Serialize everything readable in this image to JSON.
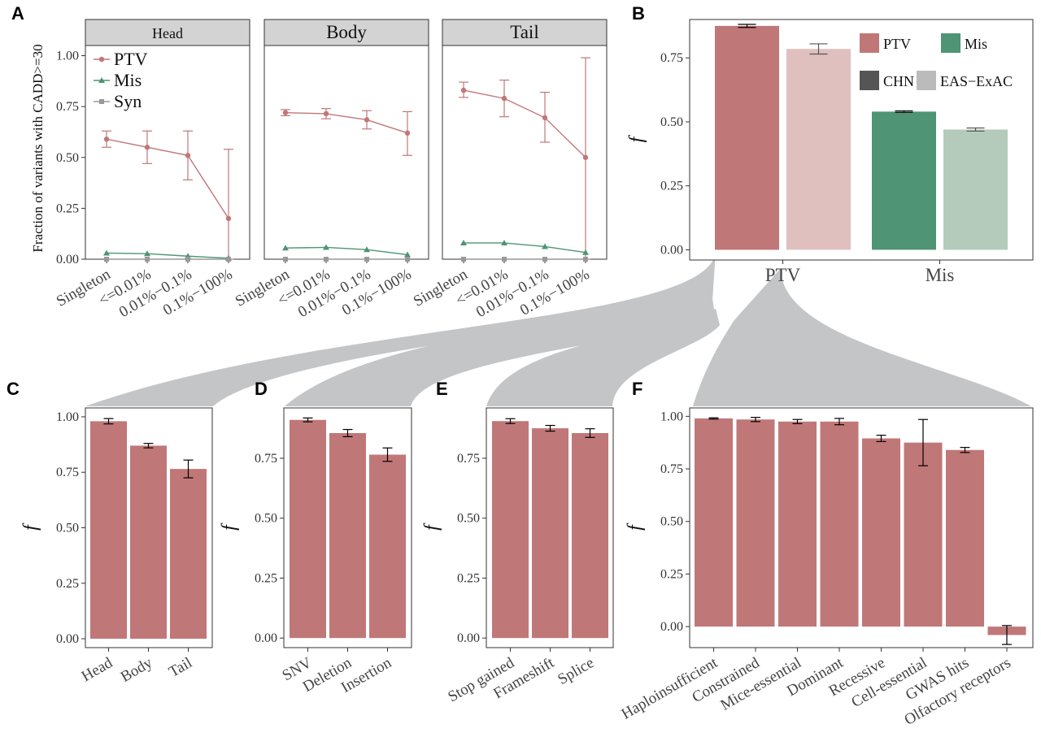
{
  "panels": {
    "A": "A",
    "B": "B",
    "C": "C",
    "D": "D",
    "E": "E",
    "F": "F"
  },
  "colors": {
    "ptv": "#c07778",
    "ptv_light": "#e0c0bf",
    "mis": "#4f9474",
    "mis_light": "#b4cbbc",
    "syn": "#999999",
    "chn": "#555555",
    "eas": "#bbbbbb",
    "strip": "#d3d3d3",
    "connector": "#c4c5c7"
  },
  "chart_data": [
    {
      "id": "A",
      "type": "line",
      "ylabel": "Fraction of variants with CADD>=30",
      "ylim": [
        0,
        1.05
      ],
      "yticks": [
        "0.00",
        "0.25",
        "0.50",
        "0.75",
        "1.00"
      ],
      "categories": [
        "Singleton",
        "<=0.01%",
        "0.01%−0.1%",
        "0.1%−100%"
      ],
      "legend": [
        "PTV",
        "Mis",
        "Syn"
      ],
      "facets": [
        {
          "title": "Head",
          "series": [
            {
              "name": "PTV",
              "values": [
                0.59,
                0.55,
                0.51,
                0.2
              ],
              "lower": [
                0.55,
                0.47,
                0.39,
                0.0
              ],
              "upper": [
                0.63,
                0.63,
                0.63,
                0.54
              ]
            },
            {
              "name": "Mis",
              "values": [
                0.03,
                0.027,
                0.015,
                0.005
              ]
            },
            {
              "name": "Syn",
              "values": [
                0.0,
                0.0,
                0.0,
                0.0
              ]
            }
          ]
        },
        {
          "title": "Body",
          "series": [
            {
              "name": "PTV",
              "values": [
                0.72,
                0.715,
                0.685,
                0.62
              ],
              "lower": [
                0.705,
                0.69,
                0.64,
                0.51
              ],
              "upper": [
                0.735,
                0.74,
                0.73,
                0.725
              ]
            },
            {
              "name": "Mis",
              "values": [
                0.055,
                0.058,
                0.047,
                0.022
              ]
            },
            {
              "name": "Syn",
              "values": [
                0.0,
                0.0,
                0.0,
                0.0
              ]
            }
          ]
        },
        {
          "title": "Tail",
          "series": [
            {
              "name": "PTV",
              "values": [
                0.83,
                0.79,
                0.695,
                0.5
              ],
              "lower": [
                0.795,
                0.7,
                0.575,
                0.0
              ],
              "upper": [
                0.87,
                0.88,
                0.82,
                0.99
              ]
            },
            {
              "name": "Mis",
              "values": [
                0.08,
                0.08,
                0.062,
                0.033
              ]
            },
            {
              "name": "Syn",
              "values": [
                0.0,
                0.0,
                0.0,
                0.0
              ]
            }
          ]
        }
      ]
    },
    {
      "id": "B",
      "type": "bar",
      "ylabel": "f",
      "ylim": [
        -0.04,
        0.9
      ],
      "yticks": [
        "0.00",
        "0.25",
        "0.50",
        "0.75"
      ],
      "categories": [
        "PTV",
        "Mis"
      ],
      "legend": [
        "PTV",
        "Mis",
        "CHN",
        "EAS−ExAC"
      ],
      "series": [
        {
          "name": "CHN",
          "values": [
            0.875,
            0.54
          ],
          "err": [
            0.006,
            0.003
          ]
        },
        {
          "name": "EAS−ExAC",
          "values": [
            0.785,
            0.47
          ],
          "err": [
            0.02,
            0.006
          ]
        }
      ]
    },
    {
      "id": "C",
      "type": "bar",
      "ylabel": "f",
      "ylim": [
        -0.04,
        1.04
      ],
      "yticks": [
        "0.00",
        "0.25",
        "0.50",
        "0.75",
        "1.00"
      ],
      "categories": [
        "Head",
        "Body",
        "Tail"
      ],
      "values": [
        0.98,
        0.87,
        0.765
      ],
      "err": [
        0.012,
        0.01,
        0.04
      ]
    },
    {
      "id": "D",
      "type": "bar",
      "ylabel": "f",
      "ylim": [
        -0.04,
        0.96
      ],
      "yticks": [
        "0.00",
        "0.25",
        "0.50",
        "0.75"
      ],
      "categories": [
        "SNV",
        "Deletion",
        "Insertion"
      ],
      "values": [
        0.91,
        0.855,
        0.765
      ],
      "err": [
        0.008,
        0.015,
        0.028
      ]
    },
    {
      "id": "E",
      "type": "bar",
      "ylabel": "f",
      "ylim": [
        -0.04,
        0.96
      ],
      "yticks": [
        "0.00",
        "0.25",
        "0.50",
        "0.75"
      ],
      "categories": [
        "Stop gained",
        "Frameshift",
        "Splice"
      ],
      "values": [
        0.905,
        0.875,
        0.855
      ],
      "err": [
        0.01,
        0.012,
        0.018
      ]
    },
    {
      "id": "F",
      "type": "bar",
      "ylabel": "f",
      "ylim": [
        -0.1,
        1.04
      ],
      "yticks": [
        "0.00",
        "0.25",
        "0.50",
        "0.75",
        "1.00"
      ],
      "categories": [
        "Haploinsufficient",
        "Constrained",
        "Mice-essential",
        "Dominant",
        "Recessive",
        "Cell-essential",
        "GWAS hits",
        "Olfactory receptors"
      ],
      "values": [
        0.99,
        0.985,
        0.975,
        0.975,
        0.895,
        0.875,
        0.84,
        -0.04
      ],
      "err": [
        0.003,
        0.01,
        0.01,
        0.015,
        0.015,
        0.11,
        0.012,
        0.045
      ]
    }
  ]
}
